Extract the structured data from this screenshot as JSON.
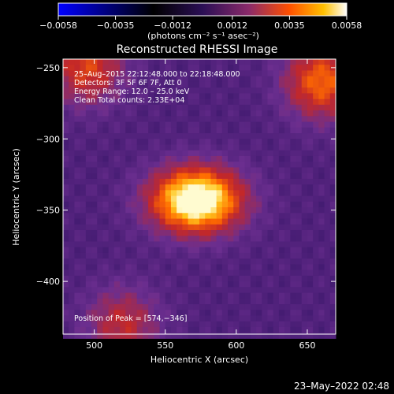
{
  "chart_data": {
    "type": "heatmap",
    "title": "Reconstructed RHESSI Image",
    "xlabel": "Heliocentric X (arcsec)",
    "ylabel": "Heliocentric Y (arcsec)",
    "xlim": [
      478,
      670
    ],
    "ylim": [
      -437,
      -244
    ],
    "x_ticks": [
      500,
      550,
      600,
      650
    ],
    "y_ticks": [
      -250,
      -300,
      -350,
      -400
    ],
    "colorbar": {
      "min": -0.0058,
      "max": 0.0058,
      "tick_values": [
        -0.0058,
        -0.0035,
        -0.0012,
        0.0012,
        0.0035,
        0.0058
      ],
      "tick_labels": [
        "−0.0058",
        "−0.0035",
        "−0.0012",
        "0.0012",
        "0.0035",
        "0.0058"
      ],
      "units": "(photons cm⁻² s⁻¹ asec⁻²)"
    },
    "colors": {
      "background": "#000000",
      "low": "#2a0f5e",
      "mid": "#6b2e8f",
      "high": "#ff6a00",
      "peak": "#fffbd0"
    },
    "peak": {
      "x": 574,
      "y": -346
    },
    "sources": [
      {
        "x": 572,
        "y": -343,
        "amplitude": 1.0
      },
      {
        "x": 660,
        "y": -260,
        "amplitude": 0.55
      },
      {
        "x": 495,
        "y": -250,
        "amplitude": 0.45
      },
      {
        "x": 520,
        "y": -430,
        "amplitude": 0.35
      }
    ]
  },
  "annotations": {
    "time_range": "25–Aug–2015 22:12:48.000 to 22:18:48.000",
    "detectors": "Detectors: 3F 5F 6F 7F, Att 0",
    "energy": "Energy Range: 12.0 – 25.0 keV",
    "clean": "Clean    Total counts: 2.33E+04",
    "peak": "Position of Peak = [574,−346]"
  },
  "footer": {
    "timestamp": "23–May–2022 02:48"
  }
}
